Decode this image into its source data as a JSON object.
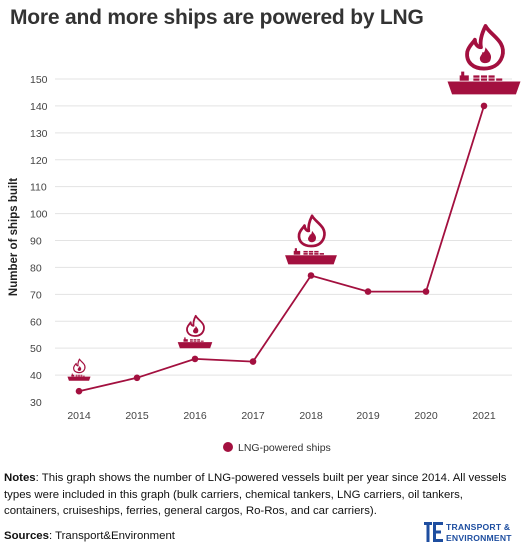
{
  "title": "More and more ships are powered by LNG",
  "chart_data": {
    "type": "line",
    "x": [
      "2014",
      "2015",
      "2016",
      "2017",
      "2018",
      "2019",
      "2020",
      "2021"
    ],
    "series": [
      {
        "name": "LNG-powered ships",
        "values": [
          34,
          39,
          46,
          45,
          77,
          71,
          71,
          140
        ],
        "color": "#a3103f"
      }
    ],
    "xlabel": "",
    "ylabel": "Number of ships built",
    "ylim": [
      30,
      150
    ],
    "yticks": [
      30,
      40,
      50,
      60,
      70,
      80,
      90,
      100,
      110,
      120,
      130,
      140,
      150
    ],
    "grid": "horizontal",
    "legend_position": "bottom",
    "icons": [
      "ship-with-flame-icon"
    ]
  },
  "notes": {
    "label": "Notes",
    "text": ": This graph shows the number of LNG-powered vessels built per year since 2014. All vessels types were included in this graph (bulk carriers, chemical tankers, LNG carriers, oil tankers, containers, cruiseships, ferries, general cargos, Ro-Ros, and car carriers)."
  },
  "sources": {
    "label": "Sources",
    "text": ": Transport&Environment"
  },
  "logo": {
    "line1": "TRANSPORT &",
    "line2": "ENVIRONMENT",
    "color": "#1e4ea0"
  }
}
